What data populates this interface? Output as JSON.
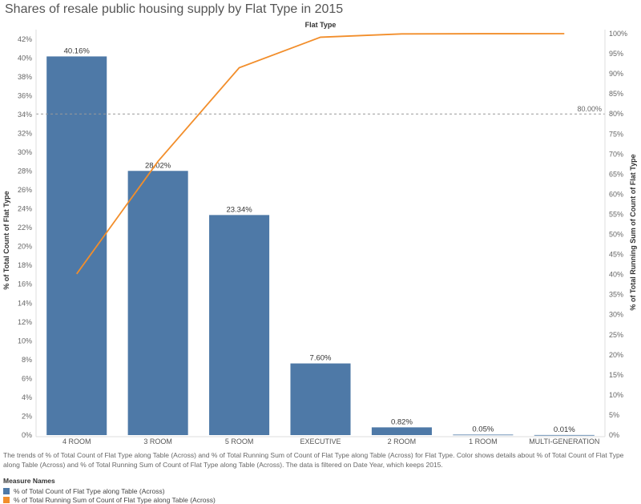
{
  "title": "Shares of resale public housing supply by Flat Type in 2015",
  "caption": "The trends of % of Total Count of Flat Type along Table (Across) and % of Total Running Sum of Count of Flat Type along Table (Across) for Flat Type.  Color shows details about % of Total Count of Flat Type along Table (Across) and % of Total Running Sum of Count of Flat Type along Table (Across). The data is filtered on Date Year, which keeps 2015.",
  "legend": {
    "title": "Measure Names",
    "items": [
      {
        "label": "% of Total Count of Flat Type along Table (Across)",
        "color": "#4e79a7"
      },
      {
        "label": "% of Total Running Sum of Count of Flat Type along Table (Across)",
        "color": "#f28e2b"
      }
    ]
  },
  "chart_data": {
    "type": "bar",
    "top_label": "Flat Type",
    "categories": [
      "4 ROOM",
      "3 ROOM",
      "5 ROOM",
      "EXECUTIVE",
      "2 ROOM",
      "1 ROOM",
      "MULTI-GENERATION"
    ],
    "bar_series": {
      "name": "% of Total Count of Flat Type along Table (Across)",
      "values": [
        40.16,
        28.02,
        23.34,
        7.6,
        0.82,
        0.05,
        0.01
      ],
      "labels": [
        "40.16%",
        "28.02%",
        "23.34%",
        "7.60%",
        "0.82%",
        "0.05%",
        "0.01%"
      ],
      "color": "#4e79a7"
    },
    "line_series": {
      "name": "% of Total Running Sum of Count of Flat Type along Table (Across)",
      "values": [
        40.16,
        68.18,
        91.52,
        99.12,
        99.94,
        99.99,
        100.0
      ],
      "color": "#f28e2b"
    },
    "ylabel": "% of Total Count of Flat Type",
    "y2label": "% of Total Running Sum of Count of Flat Type",
    "ylim": [
      0,
      43
    ],
    "y2lim": [
      0,
      101
    ],
    "yticks": [
      0,
      2,
      4,
      6,
      8,
      10,
      12,
      14,
      16,
      18,
      20,
      22,
      24,
      26,
      28,
      30,
      32,
      34,
      36,
      38,
      40,
      42
    ],
    "y2ticks": [
      0,
      5,
      10,
      15,
      20,
      25,
      30,
      35,
      40,
      45,
      50,
      55,
      60,
      65,
      70,
      75,
      80,
      85,
      90,
      95,
      100
    ],
    "reference_line": {
      "value": 80,
      "label": "80.00%"
    },
    "grid": false
  }
}
